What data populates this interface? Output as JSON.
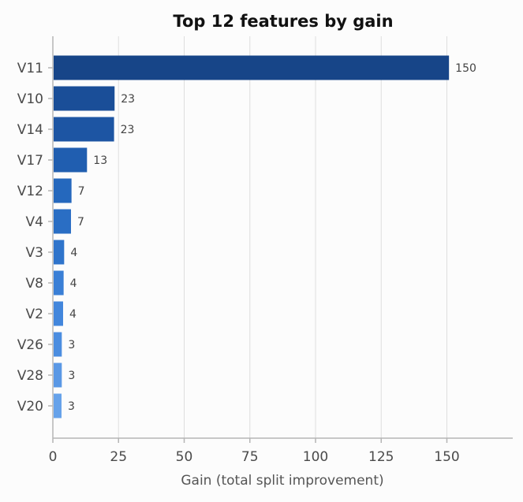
{
  "chart_data": {
    "type": "bar",
    "orientation": "horizontal",
    "title": "Top 12 features by gain",
    "xlabel": "Gain (total split improvement)",
    "ylabel": "",
    "xlim": [
      0,
      175
    ],
    "xticks": [
      0,
      25,
      50,
      75,
      100,
      125,
      150
    ],
    "grid": "vertical",
    "categories": [
      "V11",
      "V10",
      "V14",
      "V17",
      "V12",
      "V4",
      "V3",
      "V8",
      "V2",
      "V26",
      "V28",
      "V20"
    ],
    "values": [
      150.5,
      23.2,
      23.0,
      12.7,
      6.8,
      6.6,
      4.0,
      3.8,
      3.6,
      3.1,
      3.1,
      3.0
    ],
    "data_labels": [
      "150",
      "23",
      "23",
      "13",
      "7",
      "7",
      "4",
      "4",
      "4",
      "3",
      "3",
      "3"
    ],
    "colors": [
      "#174588",
      "#1a4e98",
      "#1d55a3",
      "#205eb0",
      "#2568bd",
      "#2a6ec4",
      "#2f74cb",
      "#3a7fd6",
      "#4286dc",
      "#4b8de0",
      "#5a98e5",
      "#66a2ea"
    ]
  }
}
